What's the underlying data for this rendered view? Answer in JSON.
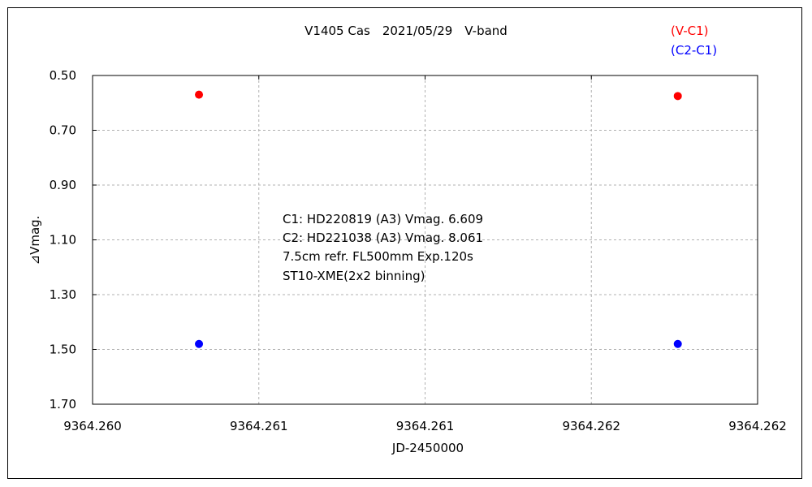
{
  "chart_data": {
    "type": "scatter",
    "title": "V1405 Cas　2021/05/29　V-band",
    "xlabel": "JD-2450000",
    "ylabel": "⊿Vmag.",
    "xlim": [
      9364.26,
      9364.262
    ],
    "ylim": [
      0.5,
      1.7
    ],
    "y_inverted": true,
    "grid": true,
    "x_tick_values": [
      9364.26,
      9364.2605,
      9364.261,
      9364.2615,
      9364.262
    ],
    "x_tick_labels": [
      "9364.260",
      "9364.261",
      "9364.261",
      "9364.262",
      "9364.262"
    ],
    "y_tick_values": [
      0.5,
      0.7,
      0.9,
      1.1,
      1.3,
      1.5,
      1.7
    ],
    "y_tick_labels": [
      "0.50",
      "0.70",
      "0.90",
      "1.10",
      "1.30",
      "1.50",
      "1.70"
    ],
    "legend_position": "top-right",
    "series": [
      {
        "name": "(V-C1)",
        "color": "#ff0000",
        "x": [
          9364.26032,
          9364.26176
        ],
        "y": [
          0.57,
          0.575
        ]
      },
      {
        "name": "(C2-C1)",
        "color": "#0000ff",
        "x": [
          9364.26032,
          9364.26176
        ],
        "y": [
          1.48,
          1.48
        ]
      }
    ],
    "annotations": [
      "C1: HD220819 (A3) Vmag. 6.609",
      "C2: HD221038 (A3) Vmag. 8.061",
      "7.5cm refr. FL500mm  Exp.120s",
      "ST10-XME(2x2 binning)"
    ]
  }
}
